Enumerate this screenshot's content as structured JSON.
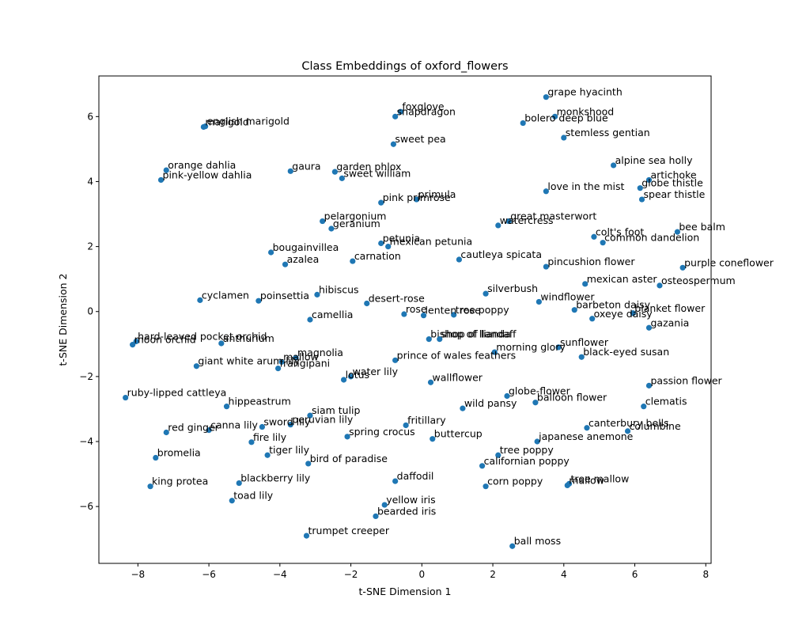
{
  "chart_data": {
    "type": "scatter",
    "title": "Class Embeddings of oxford_flowers",
    "xlabel": "t-SNE Dimension 1",
    "ylabel": "t-SNE Dimension 2",
    "xlim": [
      -9.1,
      8.15
    ],
    "ylim": [
      -7.75,
      7.25
    ],
    "xticks": [
      -8,
      -6,
      -4,
      -2,
      0,
      2,
      4,
      6,
      8
    ],
    "yticks": [
      -6,
      -4,
      -2,
      0,
      2,
      4,
      6
    ],
    "grid": false,
    "marker_color": "#1f77b4",
    "points": [
      {
        "label": "grape hyacinth",
        "x": 3.5,
        "y": 6.6
      },
      {
        "label": "foxglove",
        "x": -0.6,
        "y": 6.15
      },
      {
        "label": "snapdragon",
        "x": -0.75,
        "y": 6.0
      },
      {
        "label": "monkshood",
        "x": 3.75,
        "y": 6.0
      },
      {
        "label": "bolero deep blue",
        "x": 2.85,
        "y": 5.8
      },
      {
        "label": "english marigold",
        "x": -6.1,
        "y": 5.7
      },
      {
        "label": "marigold",
        "x": -6.15,
        "y": 5.68
      },
      {
        "label": "stemless gentian",
        "x": 4.0,
        "y": 5.35
      },
      {
        "label": "sweet pea",
        "x": -0.8,
        "y": 5.15
      },
      {
        "label": "alpine sea holly",
        "x": 5.4,
        "y": 4.5
      },
      {
        "label": "orange dahlia",
        "x": -7.2,
        "y": 4.35
      },
      {
        "label": "gaura",
        "x": -3.7,
        "y": 4.32
      },
      {
        "label": "garden phlox",
        "x": -2.45,
        "y": 4.3
      },
      {
        "label": "sweet william",
        "x": -2.25,
        "y": 4.1
      },
      {
        "label": "pink-yellow dahlia",
        "x": -7.35,
        "y": 4.05
      },
      {
        "label": "artichoke",
        "x": 6.4,
        "y": 4.05
      },
      {
        "label": "globe thistle",
        "x": 6.15,
        "y": 3.8
      },
      {
        "label": "love in the mist",
        "x": 3.5,
        "y": 3.7
      },
      {
        "label": "spear thistle",
        "x": 6.2,
        "y": 3.45
      },
      {
        "label": "primula",
        "x": -0.15,
        "y": 3.45
      },
      {
        "label": "pink primrose",
        "x": -1.15,
        "y": 3.35
      },
      {
        "label": "pelargonium",
        "x": -2.8,
        "y": 2.78
      },
      {
        "label": "great masterwort",
        "x": 2.45,
        "y": 2.78
      },
      {
        "label": "watercress",
        "x": 2.15,
        "y": 2.65
      },
      {
        "label": "geranium",
        "x": -2.55,
        "y": 2.55
      },
      {
        "label": "bee balm",
        "x": 7.2,
        "y": 2.45
      },
      {
        "label": "colt's foot",
        "x": 4.85,
        "y": 2.3
      },
      {
        "label": "common dandelion",
        "x": 5.1,
        "y": 2.12
      },
      {
        "label": "petunia",
        "x": -1.15,
        "y": 2.1
      },
      {
        "label": "mexican petunia",
        "x": -0.95,
        "y": 2.0
      },
      {
        "label": "bougainvillea",
        "x": -4.25,
        "y": 1.82
      },
      {
        "label": "cautleya spicata",
        "x": 1.05,
        "y": 1.6
      },
      {
        "label": "carnation",
        "x": -1.95,
        "y": 1.55
      },
      {
        "label": "azalea",
        "x": -3.85,
        "y": 1.45
      },
      {
        "label": "pincushion flower",
        "x": 3.5,
        "y": 1.38
      },
      {
        "label": "purple coneflower",
        "x": 7.35,
        "y": 1.35
      },
      {
        "label": "mexican aster",
        "x": 4.6,
        "y": 0.85
      },
      {
        "label": "osteospermum",
        "x": 6.7,
        "y": 0.8
      },
      {
        "label": "silverbush",
        "x": 1.8,
        "y": 0.55
      },
      {
        "label": "hibiscus",
        "x": -2.95,
        "y": 0.52
      },
      {
        "label": "cyclamen",
        "x": -6.25,
        "y": 0.35
      },
      {
        "label": "poinsettia",
        "x": -4.6,
        "y": 0.33
      },
      {
        "label": "windflower",
        "x": 3.3,
        "y": 0.3
      },
      {
        "label": "desert-rose",
        "x": -1.55,
        "y": 0.25
      },
      {
        "label": "barbeton daisy",
        "x": 4.3,
        "y": 0.05
      },
      {
        "label": "blanket flower",
        "x": 5.95,
        "y": -0.05
      },
      {
        "label": "rose",
        "x": -0.5,
        "y": -0.08
      },
      {
        "label": "tree poppy",
        "x": 0.9,
        "y": -0.1
      },
      {
        "label": "lenten rose",
        "x": 0.05,
        "y": -0.12
      },
      {
        "label": "oxeye daisy",
        "x": 4.8,
        "y": -0.22
      },
      {
        "label": "camellia",
        "x": -3.15,
        "y": -0.25
      },
      {
        "label": "gazania",
        "x": 6.4,
        "y": -0.5
      },
      {
        "label": "bishop of llandaff",
        "x": 0.2,
        "y": -0.85
      },
      {
        "label": "shop of lianda",
        "x": 0.5,
        "y": -0.85
      },
      {
        "label": "hard-leaved pocket orchid",
        "x": -8.05,
        "y": -0.92
      },
      {
        "label": "moon orchid",
        "x": -8.15,
        "y": -1.02
      },
      {
        "label": "anthurium",
        "x": -5.65,
        "y": -0.98
      },
      {
        "label": "sunflower",
        "x": 3.85,
        "y": -1.1
      },
      {
        "label": "morning glory",
        "x": 2.05,
        "y": -1.25
      },
      {
        "label": "magnolia",
        "x": -3.55,
        "y": -1.42
      },
      {
        "label": "black-eyed susan",
        "x": 4.5,
        "y": -1.4
      },
      {
        "label": "prince of wales feathers",
        "x": -0.75,
        "y": -1.5
      },
      {
        "label": "mallow",
        "x": -3.95,
        "y": -1.55
      },
      {
        "label": "giant white arum lily",
        "x": -6.35,
        "y": -1.68
      },
      {
        "label": "frangipani",
        "x": -4.05,
        "y": -1.75
      },
      {
        "label": "water lily",
        "x": -2.0,
        "y": -2.0
      },
      {
        "label": "lotus",
        "x": -2.2,
        "y": -2.1
      },
      {
        "label": "wallflower",
        "x": 0.25,
        "y": -2.18
      },
      {
        "label": "passion flower",
        "x": 6.4,
        "y": -2.28
      },
      {
        "label": "globe-flower",
        "x": 2.4,
        "y": -2.6
      },
      {
        "label": "ruby-lipped cattleya",
        "x": -8.35,
        "y": -2.65
      },
      {
        "label": "balloon flower",
        "x": 3.2,
        "y": -2.8
      },
      {
        "label": "hippeastrum",
        "x": -5.5,
        "y": -2.92
      },
      {
        "label": "clematis",
        "x": 6.25,
        "y": -2.92
      },
      {
        "label": "wild pansy",
        "x": 1.15,
        "y": -2.98
      },
      {
        "label": "siam tulip",
        "x": -3.15,
        "y": -3.2
      },
      {
        "label": "peruvian lily",
        "x": -3.7,
        "y": -3.48
      },
      {
        "label": "fritillary",
        "x": -0.45,
        "y": -3.5
      },
      {
        "label": "sword lily",
        "x": -4.5,
        "y": -3.55
      },
      {
        "label": "canterbury bells",
        "x": 4.65,
        "y": -3.58
      },
      {
        "label": "canna lily",
        "x": -6.0,
        "y": -3.65
      },
      {
        "label": "columbine",
        "x": 5.8,
        "y": -3.68
      },
      {
        "label": "red ginger",
        "x": -7.2,
        "y": -3.72
      },
      {
        "label": "spring crocus",
        "x": -2.1,
        "y": -3.85
      },
      {
        "label": "buttercup",
        "x": 0.3,
        "y": -3.92
      },
      {
        "label": "japanese anemone",
        "x": 3.25,
        "y": -4.0
      },
      {
        "label": "fire lily",
        "x": -4.8,
        "y": -4.02
      },
      {
        "label": "tree poppy",
        "x": 2.15,
        "y": -4.42
      },
      {
        "label": "tiger lily",
        "x": -4.35,
        "y": -4.42
      },
      {
        "label": "bromelia",
        "x": -7.5,
        "y": -4.5
      },
      {
        "label": "bird of paradise",
        "x": -3.2,
        "y": -4.68
      },
      {
        "label": "californian poppy",
        "x": 1.7,
        "y": -4.75
      },
      {
        "label": "daffodil",
        "x": -0.75,
        "y": -5.22
      },
      {
        "label": "blackberry lily",
        "x": -5.15,
        "y": -5.28
      },
      {
        "label": "tree mallow",
        "x": 4.15,
        "y": -5.3
      },
      {
        "label": "mallow",
        "x": 4.1,
        "y": -5.35
      },
      {
        "label": "corn poppy",
        "x": 1.8,
        "y": -5.38
      },
      {
        "label": "king protea",
        "x": -7.65,
        "y": -5.38
      },
      {
        "label": "toad lily",
        "x": -5.35,
        "y": -5.82
      },
      {
        "label": "yellow iris",
        "x": -1.05,
        "y": -5.95
      },
      {
        "label": "bearded iris",
        "x": -1.3,
        "y": -6.3
      },
      {
        "label": "trumpet creeper",
        "x": -3.25,
        "y": -6.9
      },
      {
        "label": "ball moss",
        "x": 2.55,
        "y": -7.22
      }
    ]
  }
}
